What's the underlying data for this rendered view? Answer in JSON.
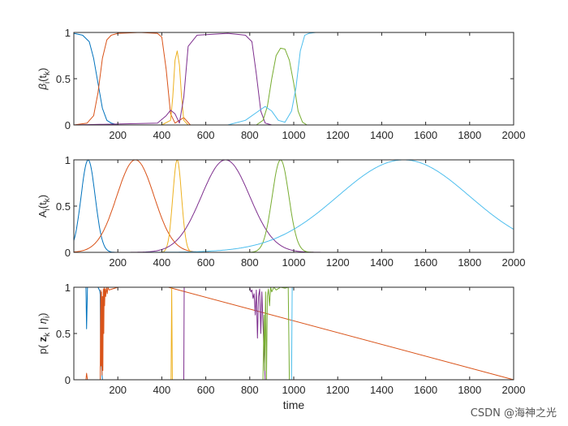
{
  "chart_data": [
    {
      "type": "line",
      "ylabel": "βi(tk)",
      "ylabel_parts": {
        "main": "β",
        "sub1": "i",
        "mid": "(t",
        "sub2": "k",
        "end": ")"
      },
      "xlim": [
        0,
        2000
      ],
      "ylim": [
        0,
        1
      ],
      "xticks": [
        200,
        400,
        600,
        800,
        1000,
        1200,
        1400,
        1600,
        1800,
        2000
      ],
      "yticks": [
        0,
        0.5,
        1
      ],
      "ytick_labels": [
        "0",
        "0.5",
        "1"
      ],
      "series": [
        {
          "color": "#0072BD",
          "x": [
            0,
            40,
            70,
            90,
            110,
            130,
            150,
            170,
            200,
            300,
            2000
          ],
          "y": [
            0.99,
            0.97,
            0.9,
            0.72,
            0.45,
            0.18,
            0.05,
            0.02,
            0.0,
            0.0,
            0.0
          ]
        },
        {
          "color": "#D95319",
          "x": [
            0,
            60,
            90,
            110,
            130,
            150,
            170,
            200,
            300,
            380,
            400,
            420,
            440,
            460,
            480,
            500,
            530,
            600,
            2000
          ],
          "y": [
            0.0,
            0.02,
            0.1,
            0.35,
            0.72,
            0.92,
            0.97,
            0.99,
            1.0,
            0.99,
            0.95,
            0.6,
            0.12,
            0.02,
            0.05,
            0.08,
            0.0,
            0.0,
            0.0
          ]
        },
        {
          "color": "#EDB120",
          "x": [
            0,
            400,
            440,
            450,
            460,
            470,
            480,
            490,
            500,
            520,
            2000
          ],
          "y": [
            0.0,
            0.0,
            0.05,
            0.3,
            0.7,
            0.8,
            0.65,
            0.3,
            0.05,
            0.0,
            0.0
          ]
        },
        {
          "color": "#7E2F8E",
          "x": [
            0,
            380,
            420,
            440,
            460,
            480,
            500,
            520,
            560,
            700,
            780,
            810,
            830,
            850,
            870,
            900,
            1000,
            2000
          ],
          "y": [
            0.0,
            0.02,
            0.1,
            0.16,
            0.12,
            0.02,
            0.3,
            0.85,
            0.97,
            0.99,
            0.97,
            0.9,
            0.55,
            0.15,
            0.02,
            0.0,
            0.0,
            0.0
          ]
        },
        {
          "color": "#77AC30",
          "x": [
            0,
            830,
            860,
            880,
            900,
            920,
            940,
            960,
            980,
            1000,
            1020,
            1040,
            1060,
            2000
          ],
          "y": [
            0.0,
            0.0,
            0.05,
            0.2,
            0.5,
            0.75,
            0.83,
            0.82,
            0.7,
            0.45,
            0.15,
            0.03,
            0.0,
            0.0
          ]
        },
        {
          "color": "#4DBEEE",
          "x": [
            0,
            700,
            780,
            840,
            870,
            900,
            930,
            960,
            990,
            1010,
            1030,
            1050,
            1070,
            1100,
            2000
          ],
          "y": [
            0.0,
            0.0,
            0.05,
            0.15,
            0.2,
            0.15,
            0.05,
            0.03,
            0.15,
            0.4,
            0.8,
            0.97,
            0.99,
            1.0,
            1.0
          ]
        }
      ]
    },
    {
      "type": "line",
      "ylabel": "Ai(tk)",
      "ylabel_parts": {
        "main": "A",
        "sub1": "i",
        "mid": "(t",
        "sub2": "k",
        "end": ")"
      },
      "xlim": [
        0,
        2000
      ],
      "ylim": [
        0,
        1
      ],
      "xticks": [
        200,
        400,
        600,
        800,
        1000,
        1200,
        1400,
        1600,
        1800,
        2000
      ],
      "yticks": [
        0,
        0.5,
        1
      ],
      "ytick_labels": [
        "0",
        "0.5",
        "1"
      ],
      "gaussians": [
        {
          "color": "#0072BD",
          "mu": 65,
          "sigma": 32
        },
        {
          "color": "#D95319",
          "mu": 280,
          "sigma": 85
        },
        {
          "color": "#EDB120",
          "mu": 470,
          "sigma": 20
        },
        {
          "color": "#7E2F8E",
          "mu": 690,
          "sigma": 110
        },
        {
          "color": "#77AC30",
          "mu": 940,
          "sigma": 38
        },
        {
          "color": "#4DBEEE",
          "mu": 1500,
          "sigma": 300
        }
      ]
    },
    {
      "type": "line",
      "ylabel": "p( zk | ηi)",
      "ylabel_parts": {
        "pre": "p( ",
        "bold": "z",
        "sub1": "k",
        "mid": " | ",
        "eta": "η",
        "sub2": "i",
        "end": ")"
      },
      "xlabel": "time",
      "xlim": [
        0,
        2000
      ],
      "ylim": [
        0,
        1
      ],
      "xticks": [
        200,
        400,
        600,
        800,
        1000,
        1200,
        1400,
        1600,
        1800,
        2000
      ],
      "yticks": [
        0,
        0.5,
        1
      ],
      "ytick_labels": [
        "0",
        "0.5",
        "1"
      ],
      "series": [
        {
          "color": "#0072BD",
          "x": [
            0,
            55,
            58,
            62,
            65,
            110,
            118,
            120,
            122,
            125,
            128,
            130,
            132,
            2000
          ],
          "y": [
            1.0,
            1.0,
            0.55,
            1.0,
            1.0,
            1.0,
            0.96,
            0.92,
            0.15,
            0.22,
            0.05,
            0.0,
            0.0,
            0.0
          ]
        },
        {
          "color": "#D95319",
          "x": [
            0,
            55,
            58,
            62,
            120,
            122,
            124,
            126,
            128,
            130,
            132,
            134,
            136,
            138,
            140,
            142,
            145,
            148,
            152,
            155,
            160,
            200,
            430,
            2000
          ],
          "y": [
            0.0,
            0.0,
            0.07,
            0.0,
            0.0,
            0.97,
            0.15,
            0.95,
            0.05,
            0.9,
            0.1,
            0.98,
            0.5,
            1.0,
            0.8,
            0.98,
            0.9,
            1.0,
            0.93,
            1.0,
            0.97,
            1.0,
            1.0,
            0.0
          ]
        },
        {
          "color": "#EDB120",
          "x": [
            0,
            442,
            445,
            448,
            2000
          ],
          "y": [
            0.0,
            0.0,
            1.0,
            0.0,
            0.0
          ]
        },
        {
          "color": "#7E2F8E",
          "x": [
            0,
            500,
            502,
            504,
            800,
            805,
            810,
            815,
            820,
            825,
            830,
            835,
            840,
            845,
            850,
            855,
            860,
            865,
            870,
            900,
            2000
          ],
          "y": [
            0.0,
            0.0,
            1.0,
            1.0,
            1.0,
            0.95,
            0.97,
            0.88,
            0.93,
            0.7,
            0.97,
            0.45,
            0.9,
            0.98,
            0.5,
            0.95,
            0.6,
            0.3,
            0.0,
            0.0,
            0.0
          ]
        },
        {
          "color": "#77AC30",
          "x": [
            0,
            860,
            865,
            868,
            872,
            876,
            880,
            885,
            890,
            895,
            900,
            910,
            920,
            940,
            960,
            975,
            980,
            2000
          ],
          "y": [
            0.0,
            0.0,
            0.7,
            0.1,
            0.95,
            0.0,
            0.9,
            0.98,
            0.8,
            1.0,
            0.95,
            1.0,
            0.97,
            1.0,
            0.99,
            1.0,
            0.0,
            0.0
          ]
        },
        {
          "color": "#4DBEEE",
          "x": [
            0,
            990,
            993,
            996,
            1000,
            2000
          ],
          "y": [
            0.0,
            0.0,
            1.0,
            1.0,
            1.0,
            1.0
          ]
        }
      ]
    }
  ],
  "watermark": "CSDN @海神之光"
}
